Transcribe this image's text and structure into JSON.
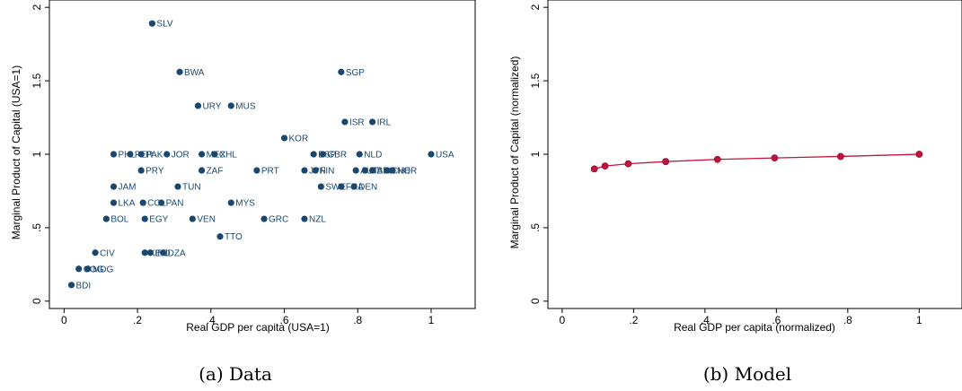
{
  "chart_data": [
    {
      "type": "scatter",
      "caption": "(a) Data",
      "xlabel": "Real GDP per capita (USA=1)",
      "ylabel": "Marginal Product of Capital (USA=1)",
      "xlim": [
        -0.04,
        1.12
      ],
      "ylim": [
        -0.05,
        2.05
      ],
      "xticks": [
        0,
        0.2,
        0.4,
        0.6,
        0.8,
        1
      ],
      "xtick_labels": [
        "0",
        ".2",
        ".4",
        ".6",
        ".8",
        "1"
      ],
      "yticks": [
        0,
        0.5,
        1,
        1.5,
        2
      ],
      "ytick_labels": [
        "0",
        ".5",
        "1",
        "1.5",
        "2"
      ],
      "marker_color": "#1a476f",
      "grid": false,
      "points": [
        {
          "label": "SLV",
          "x": 0.24,
          "y": 1.89
        },
        {
          "label": "BWA",
          "x": 0.315,
          "y": 1.56
        },
        {
          "label": "SGP",
          "x": 0.755,
          "y": 1.56
        },
        {
          "label": "URY",
          "x": 0.365,
          "y": 1.33
        },
        {
          "label": "MUS",
          "x": 0.455,
          "y": 1.33
        },
        {
          "label": "ISR",
          "x": 0.765,
          "y": 1.22
        },
        {
          "label": "IRL",
          "x": 0.84,
          "y": 1.22
        },
        {
          "label": "KOR",
          "x": 0.6,
          "y": 1.11
        },
        {
          "label": "PHL",
          "x": 0.135,
          "y": 1.0
        },
        {
          "label": "PER",
          "x": 0.18,
          "y": 1.0
        },
        {
          "label": "PAK",
          "x": 0.21,
          "y": 1.0
        },
        {
          "label": "JOR",
          "x": 0.28,
          "y": 1.0
        },
        {
          "label": "MEX",
          "x": 0.375,
          "y": 1.0
        },
        {
          "label": "CHL",
          "x": 0.41,
          "y": 1.0
        },
        {
          "label": "ESP",
          "x": 0.68,
          "y": 1.0
        },
        {
          "label": "GBR",
          "x": 0.705,
          "y": 1.0
        },
        {
          "label": "NLD",
          "x": 0.805,
          "y": 1.0
        },
        {
          "label": "USA",
          "x": 1.0,
          "y": 1.0
        },
        {
          "label": "PRY",
          "x": 0.21,
          "y": 0.89
        },
        {
          "label": "ZAF",
          "x": 0.375,
          "y": 0.89
        },
        {
          "label": "PRT",
          "x": 0.525,
          "y": 0.89
        },
        {
          "label": "JPN",
          "x": 0.655,
          "y": 0.89
        },
        {
          "label": "FIN",
          "x": 0.685,
          "y": 0.89
        },
        {
          "label": "AUT",
          "x": 0.795,
          "y": 0.89
        },
        {
          "label": "ITA",
          "x": 0.82,
          "y": 0.89
        },
        {
          "label": "BEL",
          "x": 0.84,
          "y": 0.89
        },
        {
          "label": "CHE",
          "x": 0.88,
          "y": 0.89
        },
        {
          "label": "NOR",
          "x": 0.895,
          "y": 0.89
        },
        {
          "label": "SWE",
          "x": 0.7,
          "y": 0.78
        },
        {
          "label": "FRA",
          "x": 0.755,
          "y": 0.78
        },
        {
          "label": "DEN",
          "x": 0.79,
          "y": 0.78
        },
        {
          "label": "JAM",
          "x": 0.135,
          "y": 0.78
        },
        {
          "label": "TUN",
          "x": 0.31,
          "y": 0.78
        },
        {
          "label": "LKA",
          "x": 0.135,
          "y": 0.67
        },
        {
          "label": "COL",
          "x": 0.215,
          "y": 0.67
        },
        {
          "label": "PAN",
          "x": 0.265,
          "y": 0.67
        },
        {
          "label": "MYS",
          "x": 0.455,
          "y": 0.67
        },
        {
          "label": "BOL",
          "x": 0.115,
          "y": 0.56
        },
        {
          "label": "EGY",
          "x": 0.22,
          "y": 0.56
        },
        {
          "label": "VEN",
          "x": 0.35,
          "y": 0.56
        },
        {
          "label": "GRC",
          "x": 0.545,
          "y": 0.56
        },
        {
          "label": "NZL",
          "x": 0.655,
          "y": 0.56
        },
        {
          "label": "TTO",
          "x": 0.425,
          "y": 0.44
        },
        {
          "label": "CIV",
          "x": 0.085,
          "y": 0.33
        },
        {
          "label": "KEN",
          "x": 0.22,
          "y": 0.33
        },
        {
          "label": "IND",
          "x": 0.235,
          "y": 0.33
        },
        {
          "label": "DZA",
          "x": 0.27,
          "y": 0.33
        },
        {
          "label": "COG",
          "x": 0.04,
          "y": 0.22
        },
        {
          "label": "MDG",
          "x": 0.065,
          "y": 0.22
        },
        {
          "label": "BDI",
          "x": 0.02,
          "y": 0.11
        }
      ]
    },
    {
      "type": "line",
      "caption": "(b) Model",
      "xlabel": "Real GDP per capita (normalized)",
      "ylabel": "Marginal Product of Capital (normalized)",
      "xlim": [
        -0.04,
        1.12
      ],
      "ylim": [
        -0.05,
        2.05
      ],
      "xticks": [
        0,
        0.2,
        0.4,
        0.6,
        0.8,
        1
      ],
      "xtick_labels": [
        "0",
        ".2",
        ".4",
        ".6",
        ".8",
        "1"
      ],
      "yticks": [
        0,
        0.5,
        1,
        1.5,
        2
      ],
      "ytick_labels": [
        "0",
        ".5",
        "1",
        "1.5",
        "2"
      ],
      "line_color": "#c0143c",
      "grid": false,
      "x": [
        0.09,
        0.12,
        0.185,
        0.29,
        0.435,
        0.595,
        0.78,
        1.0
      ],
      "y": [
        0.9,
        0.92,
        0.935,
        0.95,
        0.965,
        0.975,
        0.985,
        1.0
      ]
    }
  ]
}
